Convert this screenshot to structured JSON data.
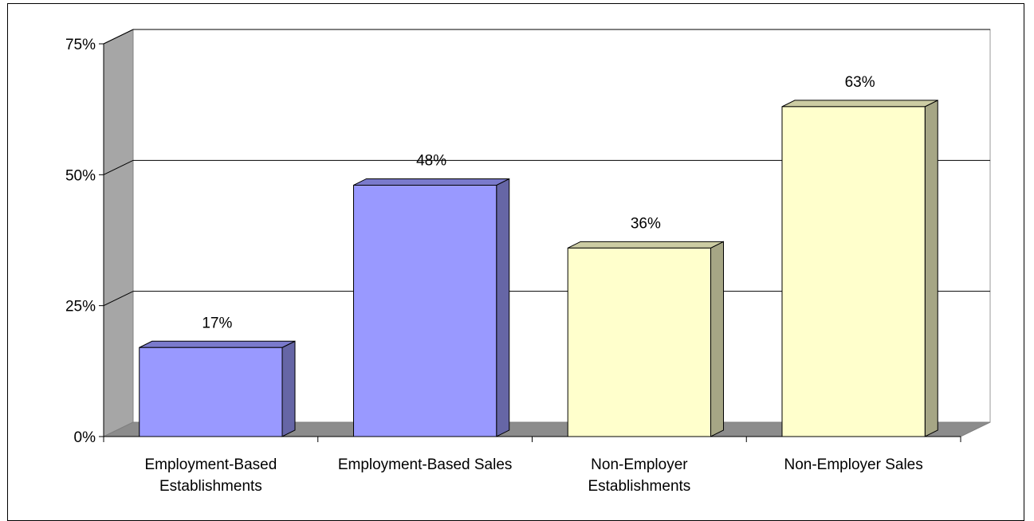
{
  "chart_data": {
    "type": "bar",
    "categories": [
      [
        "Employment-Based",
        "Establishments"
      ],
      [
        "Employment-Based Sales"
      ],
      [
        "Non-Employer",
        "Establishments"
      ],
      [
        "Non-Employer Sales"
      ]
    ],
    "values": [
      17,
      48,
      36,
      63
    ],
    "value_labels": [
      "17%",
      "48%",
      "36%",
      "63%"
    ],
    "y_ticks": [
      0,
      25,
      50,
      75
    ],
    "y_tick_labels": [
      "0%",
      "25%",
      "50%",
      "75%"
    ],
    "ylim": [
      0,
      75
    ],
    "grid": true,
    "legend": "none",
    "three_d": true,
    "bar_colors": {
      "front": [
        "#9999ff",
        "#9999ff",
        "#ffffcc",
        "#ffffcc"
      ],
      "side": [
        "#6666a6",
        "#6666a6",
        "#a6a685",
        "#a6a685"
      ],
      "top": [
        "#7a7acc",
        "#7a7acc",
        "#cccca3",
        "#cccca3"
      ]
    },
    "wall_color": "#a6a6a6",
    "floor_color": "#8c8c8c"
  }
}
